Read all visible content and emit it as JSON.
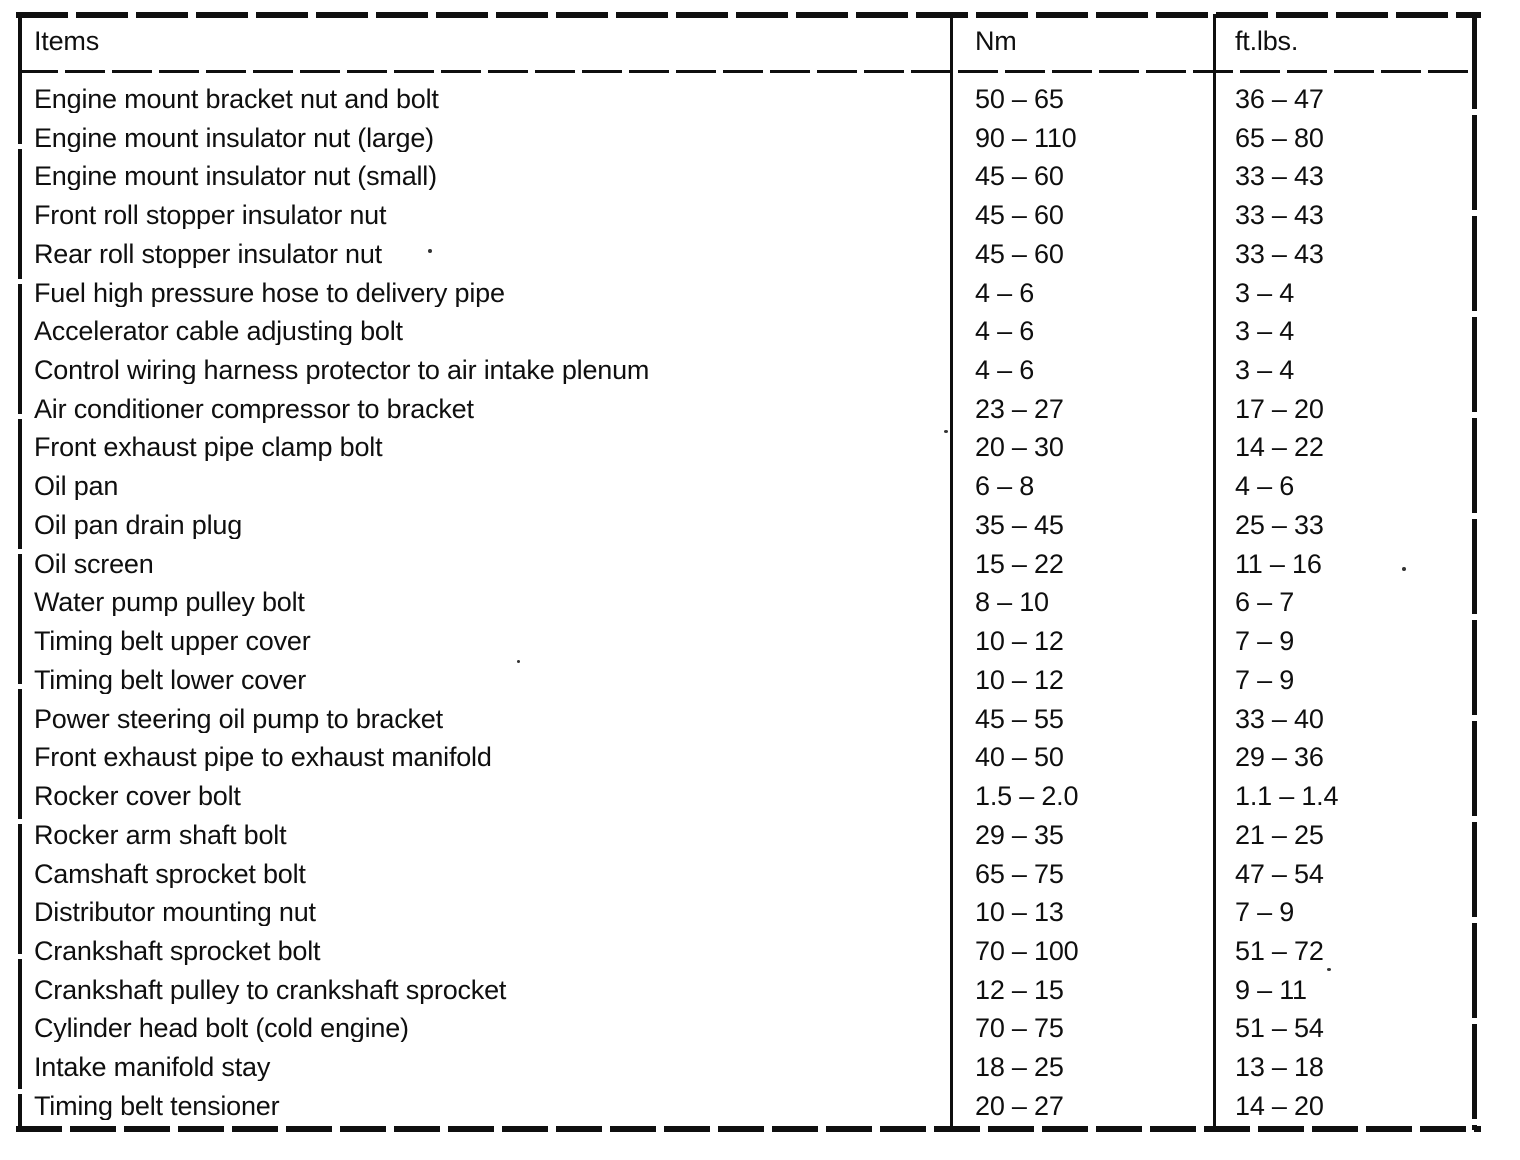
{
  "page": {
    "type": "scanned-service-manual-table",
    "ink_color": "#0f0f0f",
    "paper_color": "#ffffff"
  },
  "table": {
    "headers": {
      "items": "Items",
      "nm": "Nm",
      "ftlbs": "ft.lbs."
    },
    "rows": [
      {
        "item": "Engine mount bracket nut and bolt",
        "nm": "50 – 65",
        "ftlbs": "36 – 47"
      },
      {
        "item": "Engine mount insulator nut (large)",
        "nm": "90 – 110",
        "ftlbs": "65 – 80"
      },
      {
        "item": "Engine mount insulator nut (small)",
        "nm": "45 – 60",
        "ftlbs": "33 – 43"
      },
      {
        "item": "Front roll stopper insulator nut",
        "nm": "45 – 60",
        "ftlbs": "33 – 43"
      },
      {
        "item": "Rear roll stopper insulator nut",
        "nm": "45 – 60",
        "ftlbs": "33 – 43"
      },
      {
        "item": "Fuel high pressure hose to delivery pipe",
        "nm": "4 – 6",
        "ftlbs": "3 – 4"
      },
      {
        "item": "Accelerator cable adjusting bolt",
        "nm": "4 – 6",
        "ftlbs": "3 – 4"
      },
      {
        "item": "Control wiring harness protector to air intake plenum",
        "nm": "4 – 6",
        "ftlbs": "3 – 4"
      },
      {
        "item": "Air conditioner compressor to bracket",
        "nm": "23 – 27",
        "ftlbs": "17 – 20"
      },
      {
        "item": "Front exhaust pipe clamp bolt",
        "nm": "20 – 30",
        "ftlbs": "14 – 22"
      },
      {
        "item": "Oil pan",
        "nm": "6 – 8",
        "ftlbs": "4 – 6"
      },
      {
        "item": "Oil pan drain plug",
        "nm": "35 – 45",
        "ftlbs": "25 – 33"
      },
      {
        "item": "Oil screen",
        "nm": "15 – 22",
        "ftlbs": "11 – 16"
      },
      {
        "item": "Water pump pulley bolt",
        "nm": "8 – 10",
        "ftlbs": "6 – 7"
      },
      {
        "item": "Timing belt upper cover",
        "nm": "10 – 12",
        "ftlbs": "7 – 9"
      },
      {
        "item": "Timing belt lower cover",
        "nm": "10 – 12",
        "ftlbs": "7 – 9"
      },
      {
        "item": "Power steering oil pump to bracket",
        "nm": "45 – 55",
        "ftlbs": "33 – 40"
      },
      {
        "item": "Front exhaust pipe to exhaust manifold",
        "nm": "40 – 50",
        "ftlbs": "29 – 36"
      },
      {
        "item": "Rocker cover bolt",
        "nm": "1.5 – 2.0",
        "ftlbs": "1.1 – 1.4"
      },
      {
        "item": "Rocker arm shaft bolt",
        "nm": "29 – 35",
        "ftlbs": "21 – 25"
      },
      {
        "item": "Camshaft sprocket bolt",
        "nm": "65 – 75",
        "ftlbs": "47 – 54"
      },
      {
        "item": "Distributor mounting nut",
        "nm": "10 – 13",
        "ftlbs": "7 – 9"
      },
      {
        "item": "Crankshaft sprocket bolt",
        "nm": "70 – 100",
        "ftlbs": "51 – 72"
      },
      {
        "item": "Crankshaft pulley to crankshaft sprocket",
        "nm": "12 – 15",
        "ftlbs": "9 – 11"
      },
      {
        "item": "Cylinder head bolt (cold engine)",
        "nm": "70 – 75",
        "ftlbs": "51 – 54"
      },
      {
        "item": "Intake manifold stay",
        "nm": "18 – 25",
        "ftlbs": "13 – 18"
      },
      {
        "item": "Timing belt tensioner",
        "nm": "20 – 27",
        "ftlbs": "14 – 20"
      }
    ]
  }
}
